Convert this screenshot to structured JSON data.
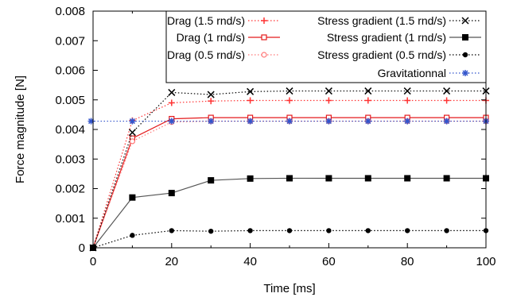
{
  "chart_data": {
    "type": "line",
    "xlabel": "Time [ms]",
    "ylabel": "Force magnitude [N]",
    "xlim": [
      0,
      100
    ],
    "ylim": [
      0,
      0.008
    ],
    "xticks": [
      0,
      20,
      40,
      60,
      80,
      100
    ],
    "yticks": [
      "0",
      "0.001",
      "0.002",
      "0.003",
      "0.004",
      "0.005",
      "0.006",
      "0.007",
      "0.008"
    ],
    "grid": false,
    "legend_position": "top-right",
    "series": [
      {
        "name": "Drag (1.5 rnd/s)",
        "color": "#ff3333",
        "line": "dotted",
        "marker": "plus",
        "x": [
          0,
          10,
          20,
          30,
          40,
          50,
          60,
          70,
          80,
          90,
          100
        ],
        "y": [
          0,
          0.0043,
          0.0049,
          0.00496,
          0.00498,
          0.00498,
          0.00498,
          0.00498,
          0.00498,
          0.00498,
          0.00498
        ]
      },
      {
        "name": "Drag (1 rnd/s)",
        "color": "#e41a1c",
        "line": "solid",
        "marker": "square-open",
        "x": [
          0,
          10,
          20,
          30,
          40,
          50,
          60,
          70,
          80,
          90,
          100
        ],
        "y": [
          0,
          0.0037,
          0.00436,
          0.0044,
          0.0044,
          0.0044,
          0.0044,
          0.0044,
          0.0044,
          0.0044,
          0.0044
        ]
      },
      {
        "name": "Drag (0.5 rnd/s)",
        "color": "#ff7777",
        "line": "dotted",
        "marker": "circle-open",
        "x": [
          0,
          10,
          20,
          30,
          40,
          50,
          60,
          70,
          80,
          90,
          100
        ],
        "y": [
          0,
          0.0036,
          0.00425,
          0.00428,
          0.00428,
          0.00428,
          0.00428,
          0.00428,
          0.00428,
          0.00428,
          0.00428
        ]
      },
      {
        "name": "Stress gradient (1.5 rnd/s)",
        "color": "#000000",
        "line": "dotted",
        "marker": "cross",
        "x": [
          0,
          10,
          20,
          30,
          40,
          50,
          60,
          70,
          80,
          90,
          100
        ],
        "y": [
          0,
          0.0039,
          0.00525,
          0.00518,
          0.00528,
          0.0053,
          0.0053,
          0.0053,
          0.0053,
          0.0053,
          0.0053
        ]
      },
      {
        "name": "Stress gradient (1 rnd/s)",
        "color": "#555555",
        "line": "solid",
        "marker": "square-filled",
        "x": [
          0,
          10,
          20,
          30,
          40,
          50,
          60,
          70,
          80,
          90,
          100
        ],
        "y": [
          0,
          0.0017,
          0.00185,
          0.00228,
          0.00234,
          0.00235,
          0.00235,
          0.00235,
          0.00235,
          0.00235,
          0.00235
        ]
      },
      {
        "name": "Stress gradient (0.5 rnd/s)",
        "color": "#000000",
        "line": "dotted",
        "marker": "circle-filled",
        "x": [
          0,
          10,
          20,
          30,
          40,
          50,
          60,
          70,
          80,
          90,
          100
        ],
        "y": [
          0,
          0.00042,
          0.00058,
          0.00056,
          0.00058,
          0.00058,
          0.00058,
          0.00058,
          0.00058,
          0.00058,
          0.00058
        ]
      },
      {
        "name": "Gravitationnal",
        "color": "#3355cc",
        "line": "dotted",
        "marker": "star",
        "x": [
          -0.5,
          10,
          20,
          30,
          40,
          50,
          60,
          70,
          80,
          90,
          100
        ],
        "y": [
          0.00428,
          0.00428,
          0.00428,
          0.00428,
          0.00428,
          0.00428,
          0.00428,
          0.00428,
          0.00428,
          0.00428,
          0.00428
        ]
      }
    ]
  }
}
